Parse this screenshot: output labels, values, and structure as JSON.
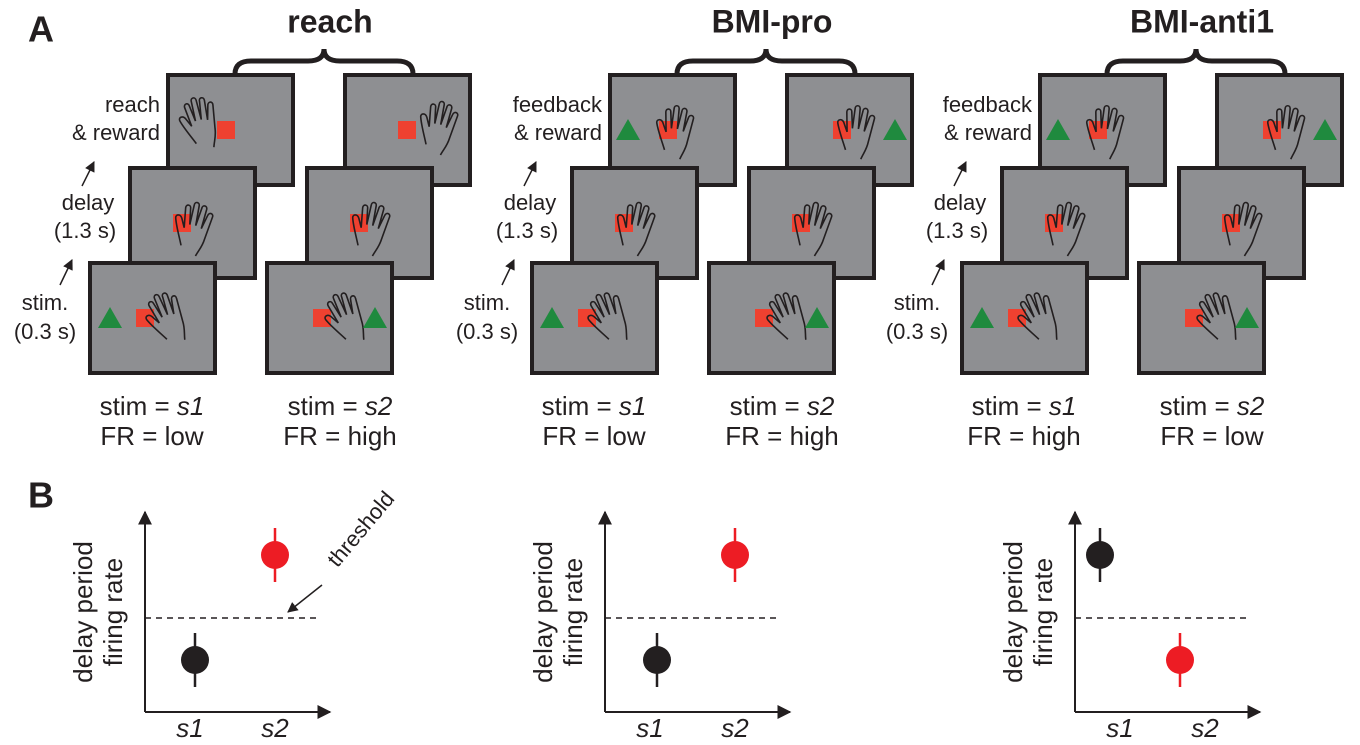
{
  "panel_a": {
    "label": "A",
    "groups": [
      {
        "title": "reach",
        "stages": {
          "outcome": [
            "reach",
            "& reward"
          ],
          "delay": [
            "delay",
            "(1.3 s)"
          ],
          "stim": [
            "stim.",
            "(0.3 s)"
          ]
        },
        "conditions": [
          {
            "stim_label": "stim =",
            "stim": "s1",
            "fr_label": "FR =",
            "fr": "low"
          },
          {
            "stim_label": "stim =",
            "stim": "s2",
            "fr_label": "FR =",
            "fr": "high"
          }
        ]
      },
      {
        "title": "BMI-pro",
        "stages": {
          "outcome": [
            "feedback",
            "& reward"
          ],
          "delay": [
            "delay",
            "(1.3 s)"
          ],
          "stim": [
            "stim.",
            "(0.3 s)"
          ]
        },
        "conditions": [
          {
            "stim_label": "stim =",
            "stim": "s1",
            "fr_label": "FR =",
            "fr": "low"
          },
          {
            "stim_label": "stim =",
            "stim": "s2",
            "fr_label": "FR =",
            "fr": "high"
          }
        ]
      },
      {
        "title": "BMI-anti1",
        "stages": {
          "outcome": [
            "feedback",
            "& reward"
          ],
          "delay": [
            "delay",
            "(1.3 s)"
          ],
          "stim": [
            "stim.",
            "(0.3 s)"
          ]
        },
        "conditions": [
          {
            "stim_label": "stim =",
            "stim": "s1",
            "fr_label": "FR =",
            "fr": "high"
          },
          {
            "stim_label": "stim =",
            "stim": "s2",
            "fr_label": "FR =",
            "fr": "low"
          }
        ]
      }
    ]
  },
  "panel_b": {
    "label": "B",
    "plots": [
      {
        "y_label": [
          "delay period",
          "firing rate"
        ],
        "x_labels": [
          "s1",
          "s2"
        ],
        "annotation": "threshold"
      },
      {
        "y_label": [
          "delay period",
          "firing rate"
        ],
        "x_labels": [
          "s1",
          "s2"
        ]
      },
      {
        "y_label": [
          "delay period",
          "firing rate"
        ],
        "x_labels": [
          "s1",
          "s2"
        ]
      }
    ]
  }
}
